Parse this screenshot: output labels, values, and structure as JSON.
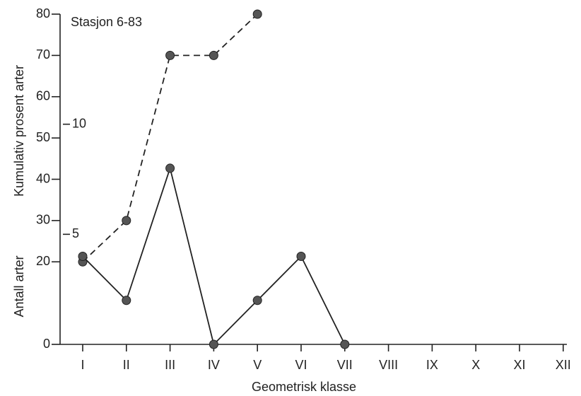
{
  "chart_data": {
    "type": "line",
    "title": "Stasjon 6-83",
    "x_label": "Geometrisk klasse",
    "y_label": "Kumulativ prosent arter",
    "y2_label": "Antall arter",
    "categories": [
      "I",
      "II",
      "III",
      "IV",
      "V",
      "VI",
      "VII",
      "VIII",
      "IX",
      "X",
      "XI",
      "XII"
    ],
    "series": [
      {
        "name": "Kumulativ prosent arter",
        "color": "#222222",
        "dash": true,
        "values": [
          20,
          30,
          70,
          70,
          80,
          null,
          null,
          null,
          null,
          null,
          null,
          null
        ]
      },
      {
        "name": "Antall arter",
        "color": "#222222",
        "dash": false,
        "axis": "y2",
        "values": [
          4,
          2,
          8,
          0,
          2,
          4,
          0,
          null,
          null,
          null,
          null,
          null
        ]
      }
    ],
    "ylim": [
      0,
      80
    ],
    "yticks": [
      0,
      20,
      30,
      40,
      50,
      60,
      70,
      80
    ],
    "y2lim": [
      0,
      15
    ],
    "y2ticks": [
      5,
      10
    ]
  }
}
